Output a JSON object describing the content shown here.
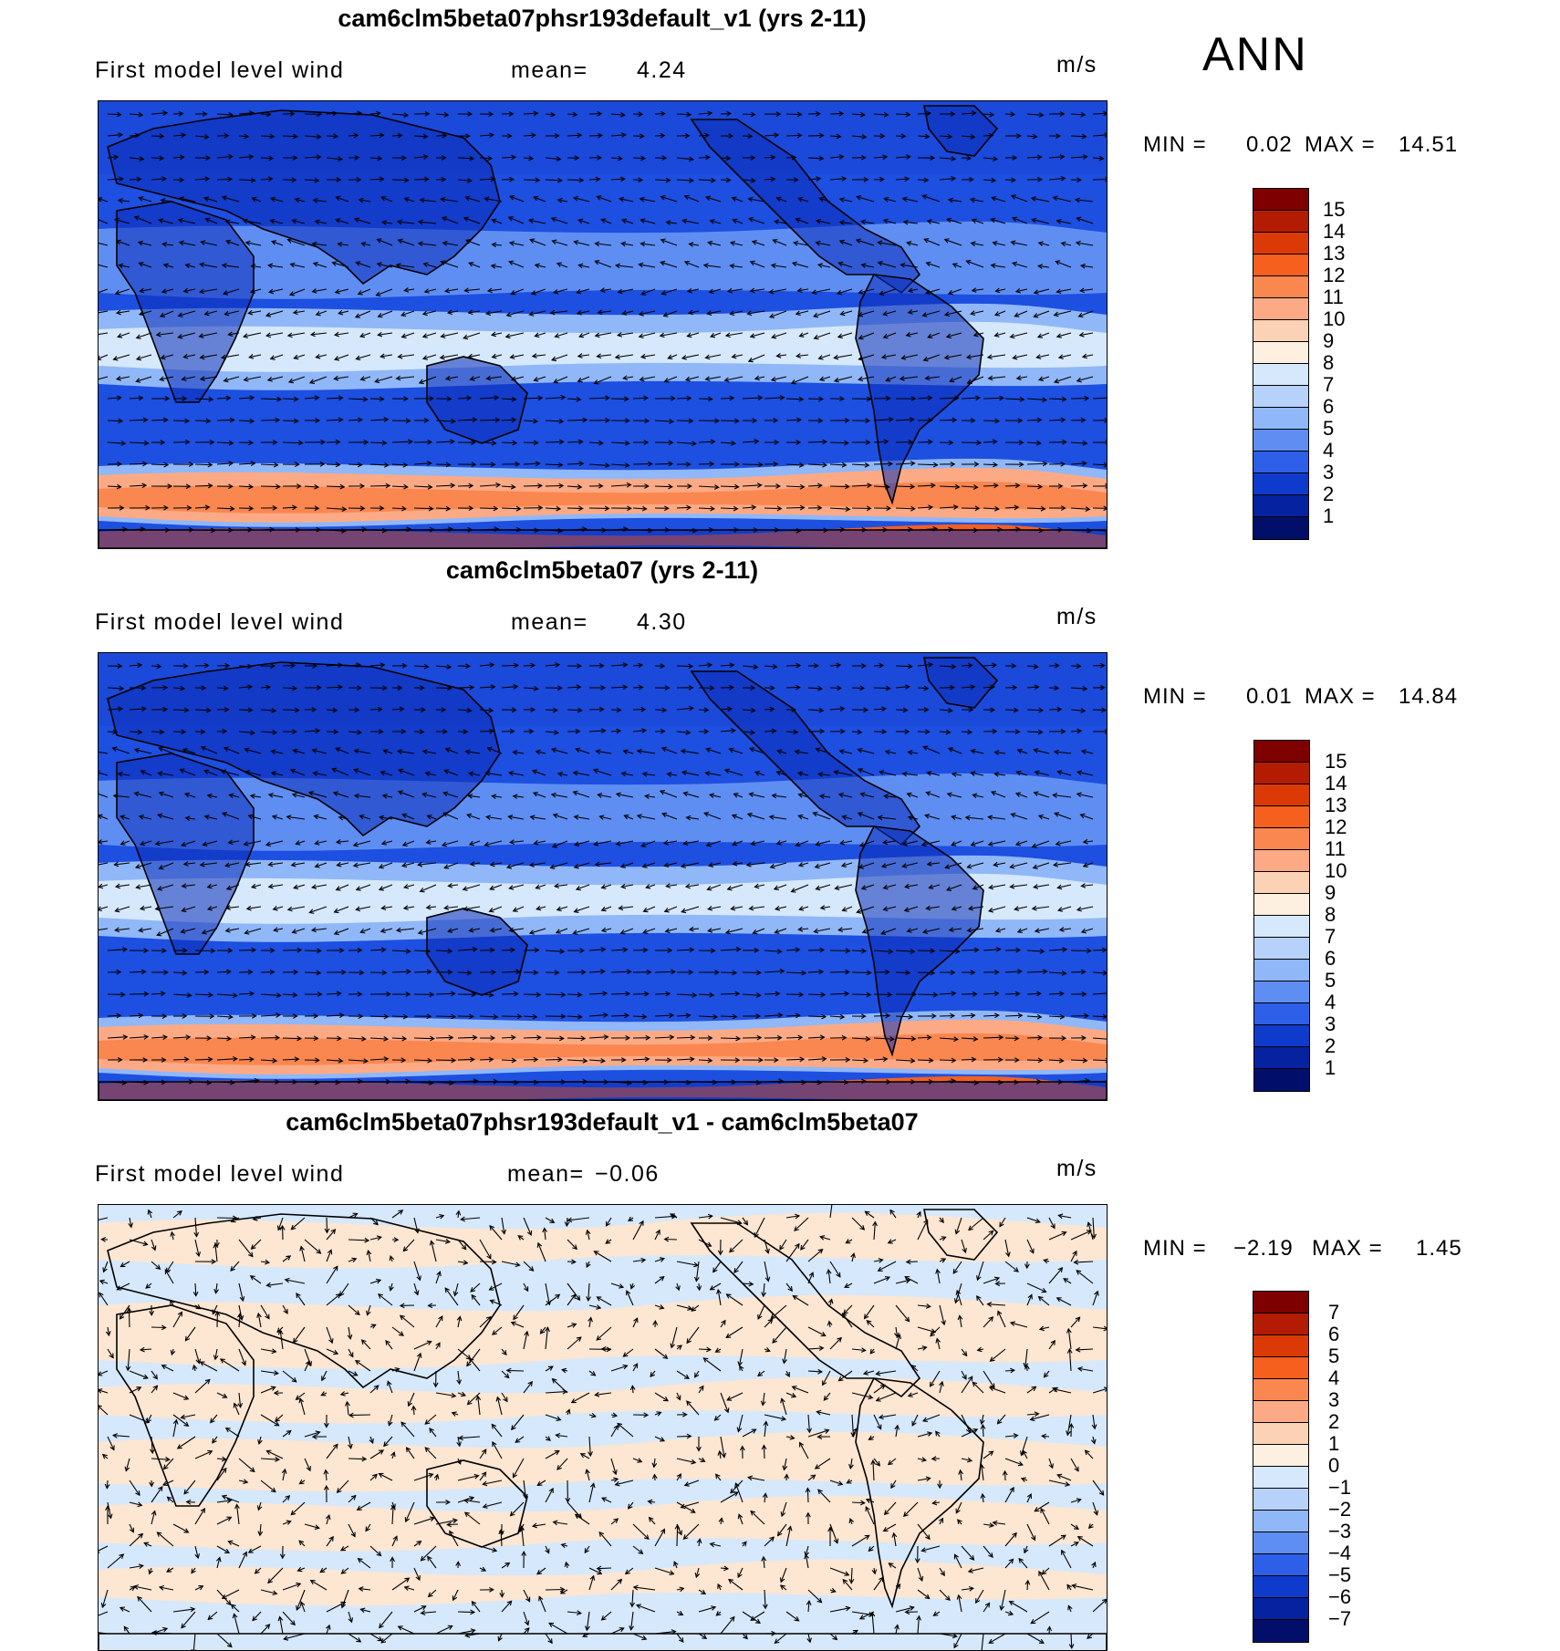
{
  "season": "ANN",
  "panels": [
    {
      "title": "cam6clm5beta07phsr193default_v1 (yrs 2-11)",
      "variable": "First model level wind",
      "mean_label": "mean=",
      "mean_value": "4.24",
      "units": "m/s",
      "min_label": "MIN =",
      "min_value": "0.02",
      "max_label": "MAX =",
      "max_value": "14.51",
      "colorbar_labels": [
        "15",
        "14",
        "13",
        "12",
        "11",
        "10",
        "9",
        "8",
        "7",
        "6",
        "5",
        "4",
        "3",
        "2",
        "1"
      ],
      "colors": [
        "#7f0000",
        "#b31c02",
        "#db3a07",
        "#f5601f",
        "#fa8750",
        "#fcaa85",
        "#fcd2b6",
        "#fdf0e0",
        "#d6e8fb",
        "#b7d2fa",
        "#90b7f8",
        "#5f8ef3",
        "#2d5fe8",
        "#0f3bcc",
        "#0522a0",
        "#010f6a"
      ]
    },
    {
      "title": "cam6clm5beta07 (yrs 2-11)",
      "variable": "First model level wind",
      "mean_label": "mean=",
      "mean_value": "4.30",
      "units": "m/s",
      "min_label": "MIN =",
      "min_value": "0.01",
      "max_label": "MAX =",
      "max_value": "14.84",
      "colorbar_labels": [
        "15",
        "14",
        "13",
        "12",
        "11",
        "10",
        "9",
        "8",
        "7",
        "6",
        "5",
        "4",
        "3",
        "2",
        "1"
      ],
      "colors": [
        "#7f0000",
        "#b31c02",
        "#db3a07",
        "#f5601f",
        "#fa8750",
        "#fcaa85",
        "#fcd2b6",
        "#fdf0e0",
        "#d6e8fb",
        "#b7d2fa",
        "#90b7f8",
        "#5f8ef3",
        "#2d5fe8",
        "#0f3bcc",
        "#0522a0",
        "#010f6a"
      ]
    },
    {
      "title": "cam6clm5beta07phsr193default_v1 - cam6clm5beta07",
      "variable": "First model level wind",
      "mean_label": "mean=",
      "mean_value": "−0.06",
      "units": "m/s",
      "min_label": "MIN =",
      "min_value": "−2.19",
      "max_label": "MAX =",
      "max_value": "1.45",
      "colorbar_labels": [
        "7",
        "6",
        "5",
        "4",
        "3",
        "2",
        "1",
        "0",
        "−1",
        "−2",
        "−3",
        "−4",
        "−5",
        "−6",
        "−7"
      ],
      "colors": [
        "#7f0000",
        "#b31c02",
        "#db3a07",
        "#f5601f",
        "#fa8750",
        "#fcaa85",
        "#fcd2b6",
        "#fdf0e0",
        "#d6e8fb",
        "#b7d2fa",
        "#90b7f8",
        "#5f8ef3",
        "#2d5fe8",
        "#0f3bcc",
        "#0522a0",
        "#010f6a"
      ]
    }
  ]
}
